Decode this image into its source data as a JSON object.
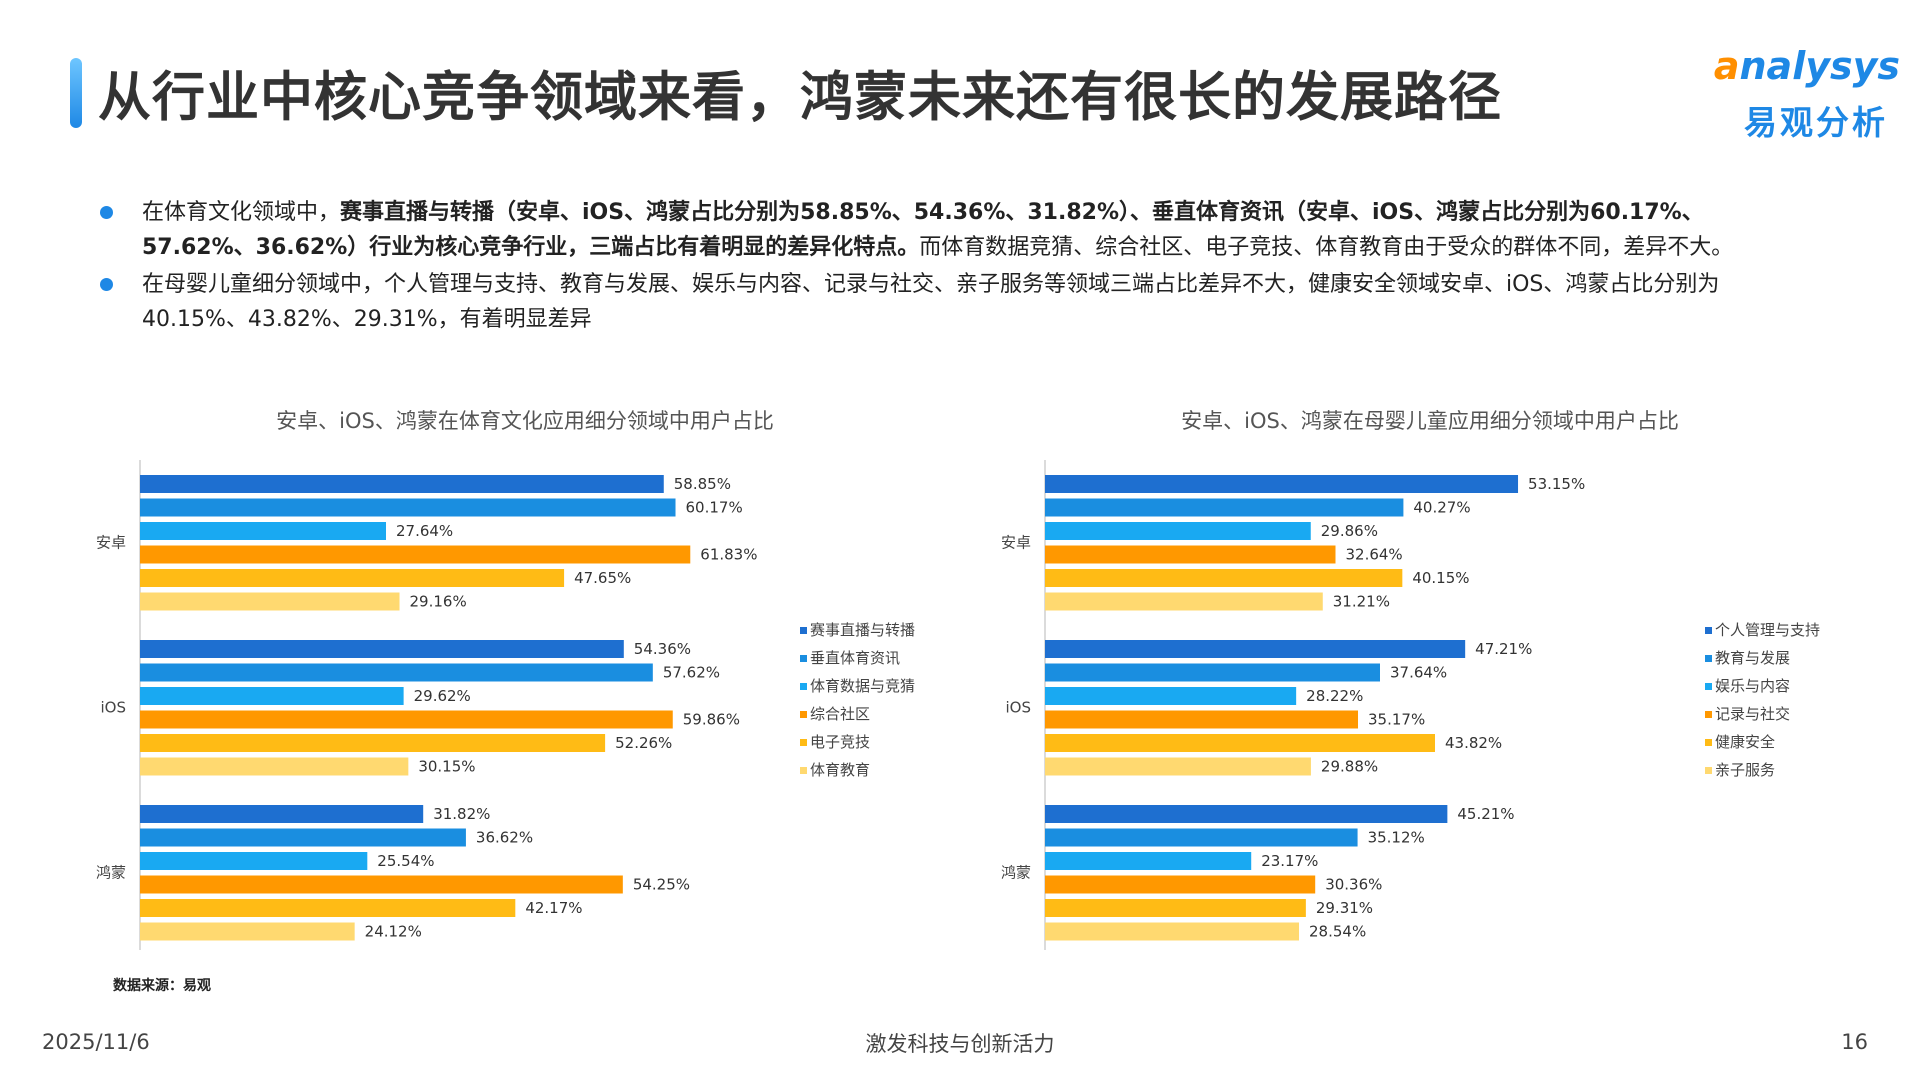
{
  "header": {
    "title": "从行业中核心竞争领域来看，鸿蒙未来还有很长的发展路径",
    "logo_text": "nalysys",
    "logo_letter": "a",
    "logo_cn": "易观分析"
  },
  "bullets": [
    {
      "lead": "在体育文化领域中，",
      "bold": "赛事直播与转播（安卓、iOS、鸿蒙占比分别为58.85%、54.36%、31.82%）、垂直体育资讯（安卓、iOS、鸿蒙占比分别为60.17%、57.62%、36.62%）行业为核心竞争行业，三端占比有着明显的差异化特点。",
      "tail": "而体育数据竞猜、综合社区、电子竞技、体育教育由于受众的群体不同，差异不大。"
    },
    {
      "lead": "在母婴儿童细分领域中，个人管理与支持、教育与发展、娱乐与内容、记录与社交、亲子服务等领域三端占比差异不大，健康安全领域安卓、iOS、鸿蒙占比分别为40.15%、43.82%、29.31%，有着明显差异",
      "bold": "",
      "tail": ""
    }
  ],
  "colors": [
    "#1e6fd0",
    "#1a8ee0",
    "#19a9f2",
    "#ff9800",
    "#ffbb15",
    "#ffd970"
  ],
  "chart_data": [
    {
      "type": "bar",
      "orientation": "horizontal",
      "title": "安卓、iOS、鸿蒙在体育文化应用细分领域中用户占比",
      "categories": [
        "安卓",
        "iOS",
        "鸿蒙"
      ],
      "xlim": [
        0,
        100
      ],
      "legend_position": "right",
      "grid": false,
      "series": [
        {
          "name": "赛事直播与转播",
          "values": [
            58.85,
            54.36,
            31.82
          ],
          "labels": [
            "58.85%",
            "54.36%",
            "31.82%"
          ]
        },
        {
          "name": "垂直体育资讯",
          "values": [
            60.17,
            57.62,
            36.62
          ],
          "labels": [
            "60.17%",
            "57.62%",
            "36.62%"
          ]
        },
        {
          "name": "体育数据与竞猜",
          "values": [
            27.64,
            29.62,
            25.54
          ],
          "labels": [
            "27.64%",
            "29.62%",
            "25.54%"
          ]
        },
        {
          "name": "综合社区",
          "values": [
            61.83,
            59.86,
            54.25
          ],
          "labels": [
            "61.83%",
            "59.86%",
            "54.25%"
          ]
        },
        {
          "name": "电子竞技",
          "values": [
            47.65,
            52.26,
            42.17
          ],
          "labels": [
            "47.65%",
            "52.26%",
            "42.17%"
          ]
        },
        {
          "name": "体育教育",
          "values": [
            29.16,
            30.15,
            24.12
          ],
          "labels": [
            "29.16%",
            "30.15%",
            "24.12%"
          ]
        }
      ]
    },
    {
      "type": "bar",
      "orientation": "horizontal",
      "title": "安卓、iOS、鸿蒙在母婴儿童应用细分领域中用户占比",
      "categories": [
        "安卓",
        "iOS",
        "鸿蒙"
      ],
      "xlim": [
        0,
        100
      ],
      "legend_position": "right",
      "grid": false,
      "series": [
        {
          "name": "个人管理与支持",
          "values": [
            53.15,
            47.21,
            45.21
          ],
          "labels": [
            "53.15%",
            "47.21%",
            "45.21%"
          ]
        },
        {
          "name": "教育与发展",
          "values": [
            40.27,
            37.64,
            35.12
          ],
          "labels": [
            "40.27%",
            "37.64%",
            "35.12%"
          ]
        },
        {
          "name": "娱乐与内容",
          "values": [
            29.86,
            28.22,
            23.17
          ],
          "labels": [
            "29.86%",
            "28.22%",
            "23.17%"
          ]
        },
        {
          "name": "记录与社交",
          "values": [
            32.64,
            35.17,
            30.36
          ],
          "labels": [
            "32.64%",
            "35.17%",
            "30.36%"
          ]
        },
        {
          "name": "健康安全",
          "values": [
            40.15,
            43.82,
            29.31
          ],
          "labels": [
            "40.15%",
            "43.82%",
            "29.31%"
          ]
        },
        {
          "name": "亲子服务",
          "values": [
            31.21,
            29.88,
            28.54
          ],
          "labels": [
            "31.21%",
            "29.88%",
            "28.54%"
          ]
        }
      ]
    }
  ],
  "source": "数据来源：易观",
  "footer": {
    "date": "2025/11/6",
    "slogan": "激发科技与创新活力",
    "page": "16"
  }
}
